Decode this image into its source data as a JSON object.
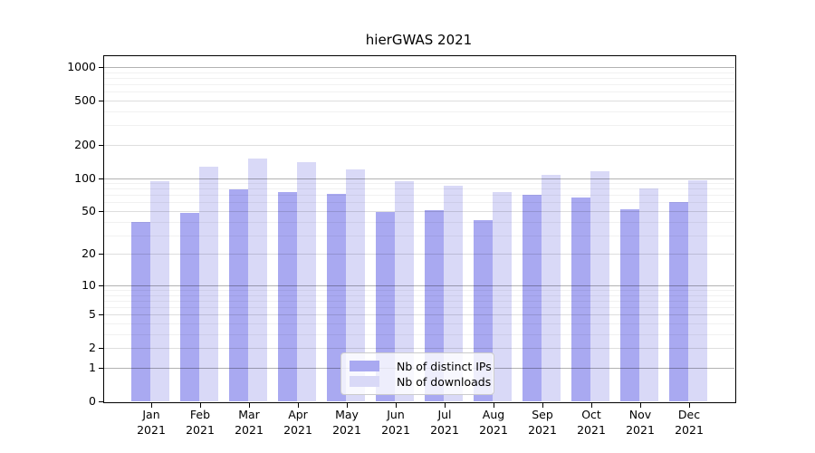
{
  "chart_data": {
    "type": "bar",
    "title": "hierGWAS 2021",
    "year": "2021",
    "categories": [
      "Jan",
      "Feb",
      "Mar",
      "Apr",
      "May",
      "Jun",
      "Jul",
      "Aug",
      "Sep",
      "Oct",
      "Nov",
      "Dec"
    ],
    "series": [
      {
        "name": "Nb of distinct IPs",
        "color": "#a9a9f1",
        "values": [
          40,
          48,
          79,
          75,
          72,
          49,
          51,
          41,
          70,
          66,
          52,
          61
        ]
      },
      {
        "name": "Nb of downloads",
        "color": "#d9d9f7",
        "values": [
          93,
          127,
          149,
          140,
          119,
          94,
          85,
          75,
          106,
          115,
          80,
          95
        ]
      }
    ],
    "xlabel": "",
    "ylabel": "",
    "y_ticks": [
      0,
      1,
      2,
      5,
      10,
      20,
      50,
      100,
      200,
      500,
      1000
    ],
    "y_minor_ticks": [
      3,
      4,
      6,
      7,
      8,
      9,
      30,
      40,
      60,
      70,
      80,
      90,
      300,
      400,
      600,
      700,
      800,
      900
    ],
    "y_scale": "log10(value+1)",
    "ylim": [
      0,
      1070
    ],
    "grid": "horizontal",
    "legend_position": "bottom-center"
  }
}
